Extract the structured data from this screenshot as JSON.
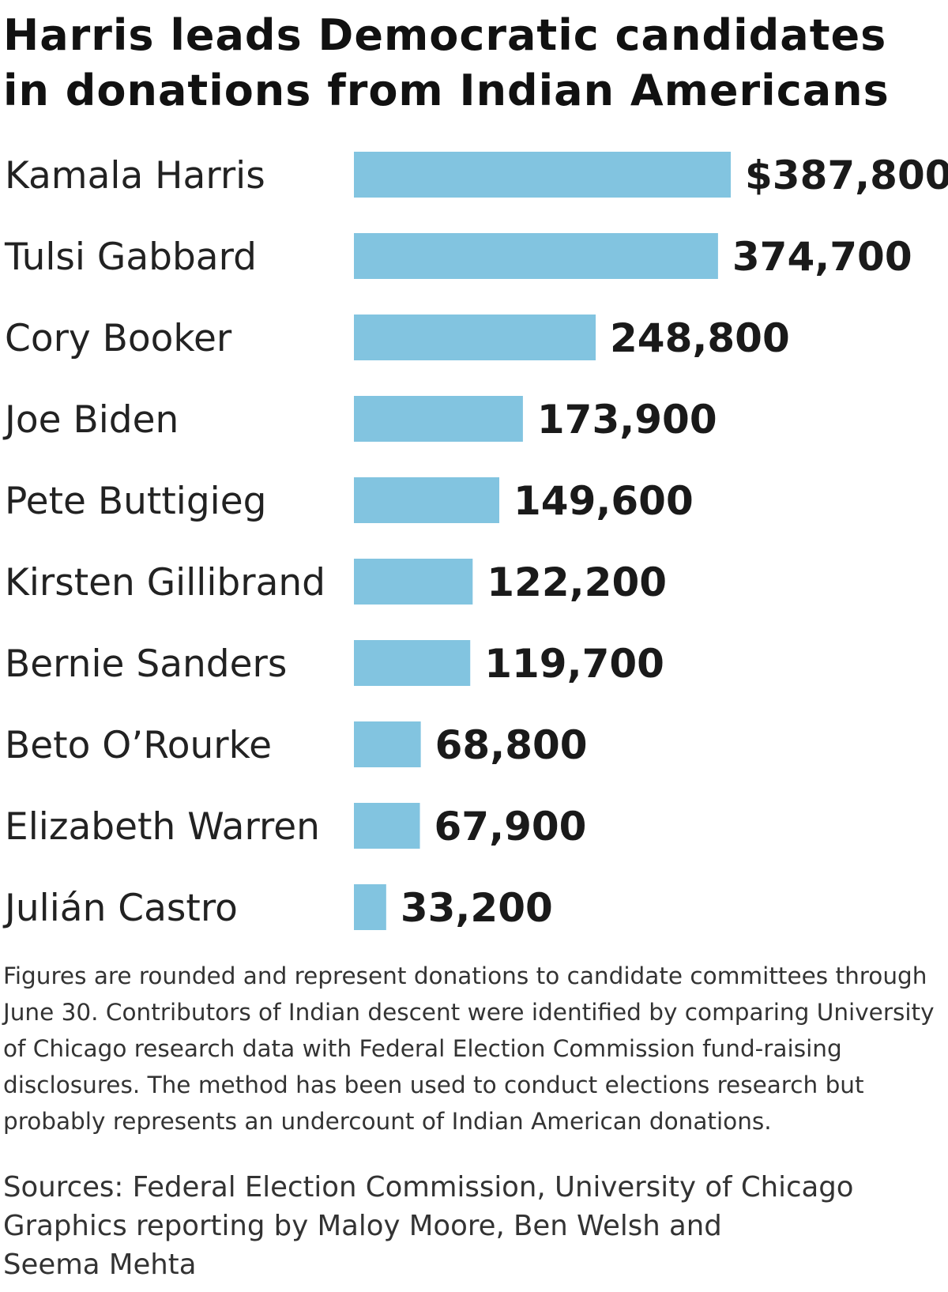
{
  "title": "Harris leads Democratic candidates in donations from Indian Americans",
  "chart_data": {
    "type": "bar",
    "orientation": "horizontal",
    "title": "Harris leads Democratic candidates in donations from Indian Americans",
    "categories": [
      "Kamala Harris",
      "Tulsi Gabbard",
      "Cory Booker",
      "Joe Biden",
      "Pete Buttigieg",
      "Kirsten Gillibrand",
      "Bernie Sanders",
      "Beto O’Rourke",
      "Elizabeth Warren",
      "Julián Castro"
    ],
    "values": [
      387800,
      374700,
      248800,
      173900,
      149600,
      122200,
      119700,
      68800,
      67900,
      33200
    ],
    "value_labels": [
      "$387,800",
      "374,700",
      "248,800",
      "173,900",
      "149,600",
      "122,200",
      "119,700",
      "68,800",
      "67,900",
      "33,200"
    ],
    "xlim": [
      0,
      387800
    ],
    "grid": false,
    "bar_color": "#82c4e0"
  },
  "note": "Figures are rounded and represent donations to candidate committees through June 30. Contributors of Indian descent were identified by comparing University of Chicago research data with Federal Election Commission fund-raising disclosures. The method has been used to conduct elections research but probably represents an undercount of Indian American donations.",
  "sources": "Sources: Federal Election Commission, University of Chicago",
  "credit": "Graphics reporting by Maloy Moore, Ben Welsh and Seema Mehta"
}
